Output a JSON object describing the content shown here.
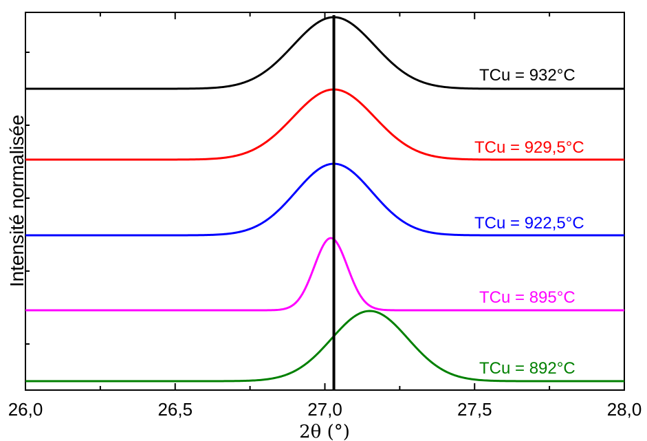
{
  "chart_data": {
    "type": "line",
    "xlabel": "2θ (°)",
    "ylabel": "Intensité normalisée",
    "xlim": [
      26.0,
      28.0
    ],
    "xticks": [
      "26,0",
      "26,5",
      "27,0",
      "27,5",
      "28,0"
    ],
    "xtick_values": [
      26.0,
      26.5,
      27.0,
      27.5,
      28.0
    ],
    "reference_line_x": 27.03,
    "grid": false,
    "series": [
      {
        "name": "TCu = 932°C",
        "color": "#000000",
        "center": 27.03,
        "fwhm": 0.32
      },
      {
        "name": "TCu = 929,5°C",
        "color": "#ff0000",
        "center": 27.03,
        "fwhm": 0.32
      },
      {
        "name": "TCu = 922,5°C",
        "color": "#0000ff",
        "center": 27.03,
        "fwhm": 0.3
      },
      {
        "name": "TCu = 895°C",
        "color": "#ff00ff",
        "center": 27.02,
        "fwhm": 0.13
      },
      {
        "name": "TCu = 892°C",
        "color": "#008000",
        "center": 27.15,
        "fwhm": 0.3
      }
    ]
  }
}
